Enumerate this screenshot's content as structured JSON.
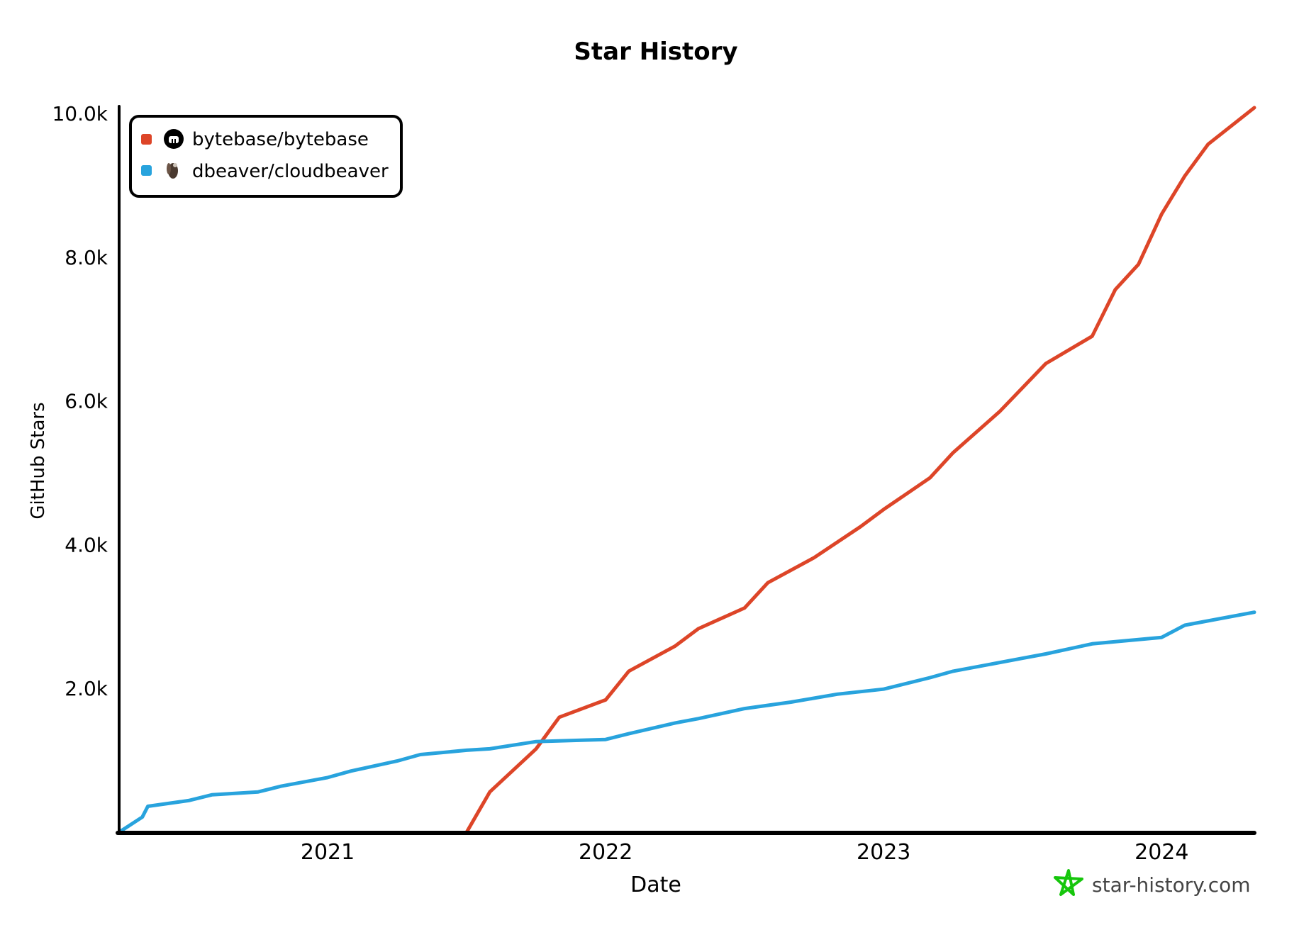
{
  "chart_data": {
    "type": "line",
    "title": "Star History",
    "xlabel": "Date",
    "ylabel": "GitHub Stars",
    "x_ticks": [
      "2021",
      "2022",
      "2023",
      "2024"
    ],
    "y_ticks": [
      "2.0k",
      "4.0k",
      "6.0k",
      "8.0k",
      "10.0k"
    ],
    "xlim": [
      "2020-04",
      "2024-05"
    ],
    "ylim": [
      0,
      10000
    ],
    "grid": false,
    "legend_position": "top-left",
    "series": [
      {
        "name": "bytebase/bytebase",
        "color": "#dd4528",
        "icon": "github-icon",
        "x": [
          "2021-07",
          "2021-08",
          "2021-10",
          "2021-11",
          "2022-01",
          "2022-02",
          "2022-04",
          "2022-05",
          "2022-07",
          "2022-08",
          "2022-10",
          "2022-12",
          "2023-01",
          "2023-03",
          "2023-04",
          "2023-06",
          "2023-08",
          "2023-10",
          "2023-11",
          "2023-12",
          "2024-01",
          "2024-02",
          "2024-03",
          "2024-05"
        ],
        "y": [
          0,
          560,
          1160,
          1600,
          1840,
          2240,
          2590,
          2830,
          3120,
          3470,
          3820,
          4250,
          4490,
          4930,
          5280,
          5850,
          6520,
          6900,
          7550,
          7900,
          8600,
          9130,
          9570,
          10080
        ]
      },
      {
        "name": "dbeaver/cloudbeaver",
        "color": "#28a3dd",
        "icon": "beaver-icon",
        "x": [
          "2020-04",
          "2020-05",
          "2020-05",
          "2020-07",
          "2020-08",
          "2020-10",
          "2020-11",
          "2021-01",
          "2021-02",
          "2021-04",
          "2021-05",
          "2021-07",
          "2021-08",
          "2021-10",
          "2022-01",
          "2022-02",
          "2022-04",
          "2022-05",
          "2022-07",
          "2022-09",
          "2022-11",
          "2023-01",
          "2023-03",
          "2023-04",
          "2023-07",
          "2023-08",
          "2023-10",
          "2024-01",
          "2024-02",
          "2024-05"
        ],
        "y": [
          0,
          210,
          360,
          440,
          520,
          560,
          640,
          760,
          850,
          990,
          1080,
          1140,
          1160,
          1260,
          1290,
          1370,
          1520,
          1580,
          1720,
          1810,
          1920,
          1990,
          2150,
          2240,
          2420,
          2480,
          2620,
          2710,
          2880,
          3060
        ]
      }
    ]
  },
  "watermark": {
    "text": "star-history.com",
    "icon": "star-history-logo-icon",
    "color": "#16c60c"
  }
}
